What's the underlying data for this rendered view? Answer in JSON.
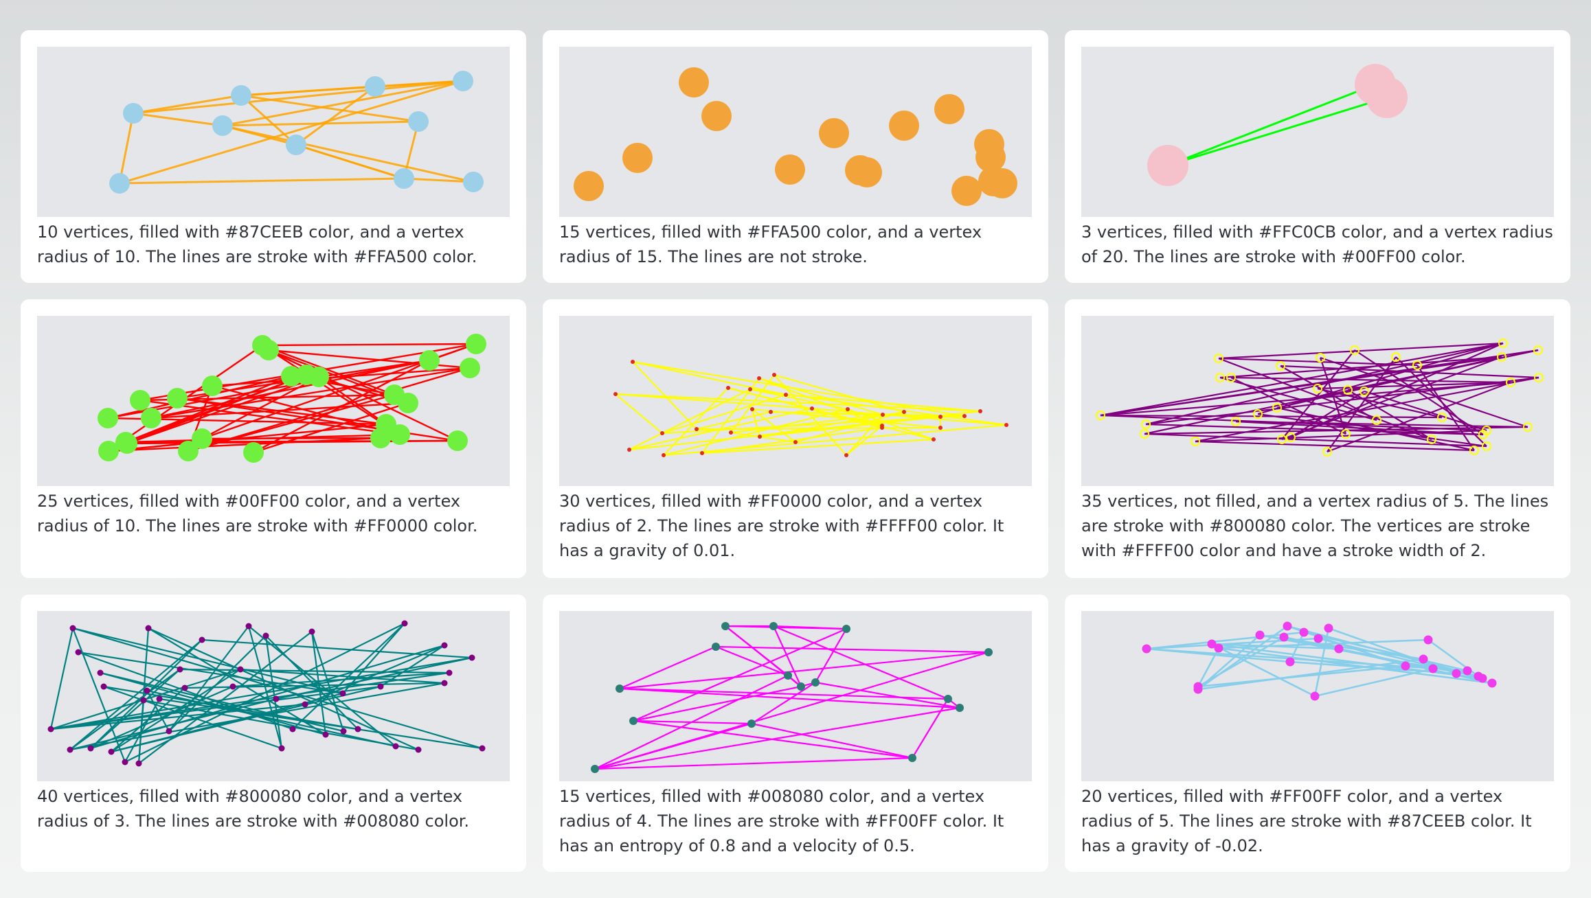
{
  "cards": [
    {
      "description": "10 vertices, filled with #87CEEB color, and a vertex radius of 10. The lines are stroke with #FFA500 color.",
      "fill": "#87CEEB",
      "stroke": "#FFA500",
      "vertex_stroke": ""
    },
    {
      "description": "15 vertices, filled with #FFA500 color, and a vertex radius of 15. The lines are not stroke.",
      "fill": "#FFA500",
      "stroke": "",
      "vertex_stroke": ""
    },
    {
      "description": "3 vertices, filled with #FFC0CB color, and a vertex radius of 20. The lines are stroke with #00FF00 color.",
      "fill": "#FFC0CB",
      "stroke": "#00FF00",
      "vertex_stroke": ""
    },
    {
      "description": "25 vertices, filled with #00FF00 color, and a vertex radius of 10. The lines are stroke with #FF0000 color.",
      "fill": "#00FF00",
      "stroke": "#FF0000",
      "vertex_stroke": ""
    },
    {
      "description": "30 vertices, filled with #FF0000 color, and a vertex radius of 2. The lines are stroke with #FFFF00 color. It has a gravity of 0.01.",
      "fill": "#FF0000",
      "stroke": "#FFFF00",
      "vertex_stroke": ""
    },
    {
      "description": "35 vertices, not filled, and a vertex radius of 5. The lines are stroke with #800080 color. The vertices are stroke with #FFFF00 color and have a stroke width of 2.",
      "fill": "none",
      "stroke": "#800080",
      "vertex_stroke": "#FFFF00"
    },
    {
      "description": "40 vertices, filled with #800080 color, and a vertex radius of 3. The lines are stroke with #008080 color.",
      "fill": "#800080",
      "stroke": "#008080",
      "vertex_stroke": ""
    },
    {
      "description": "15 vertices, filled with #008080 color, and a vertex radius of 4. The lines are stroke with #FF00FF color. It has an entropy of 0.8 and a velocity of 0.5.",
      "fill": "#008080",
      "stroke": "#FF00FF",
      "vertex_stroke": ""
    },
    {
      "description": "20 vertices, filled with #FF00FF color, and a vertex radius of 5. The lines are stroke with #87CEEB color. It has a gravity of -0.02.",
      "fill": "#FF00FF",
      "stroke": "#87CEEB",
      "vertex_stroke": ""
    }
  ]
}
